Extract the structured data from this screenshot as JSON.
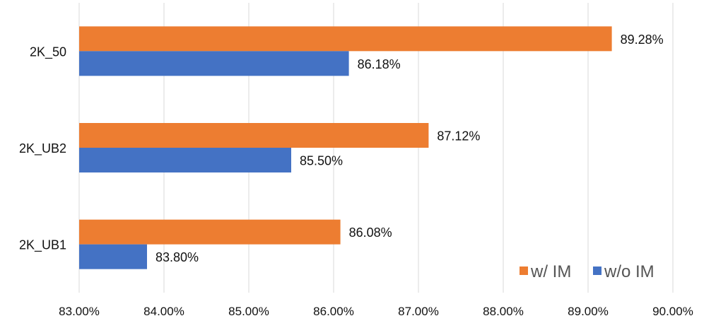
{
  "chart_data": {
    "type": "bar",
    "orientation": "horizontal",
    "title": "",
    "xlabel": "",
    "ylabel": "",
    "categories": [
      "2K_50",
      "2K_UB2",
      "2K_UB1"
    ],
    "series": [
      {
        "name": "w/ IM",
        "color": "#ED7D31",
        "values": [
          89.28,
          87.12,
          86.08
        ],
        "labels": [
          "89.28%",
          "87.12%",
          "86.08%"
        ]
      },
      {
        "name": "w/o IM",
        "color": "#4472C4",
        "values": [
          86.18,
          85.5,
          83.8
        ],
        "labels": [
          "86.18%",
          "85.50%",
          "83.80%"
        ]
      }
    ],
    "xlim": [
      83,
      90
    ],
    "xticks": [
      83,
      84,
      85,
      86,
      87,
      88,
      89,
      90
    ],
    "xtick_labels": [
      "83.00%",
      "84.00%",
      "85.00%",
      "86.00%",
      "87.00%",
      "88.00%",
      "89.00%",
      "90.00%"
    ],
    "grid": true,
    "legend_position": "bottom-right"
  }
}
